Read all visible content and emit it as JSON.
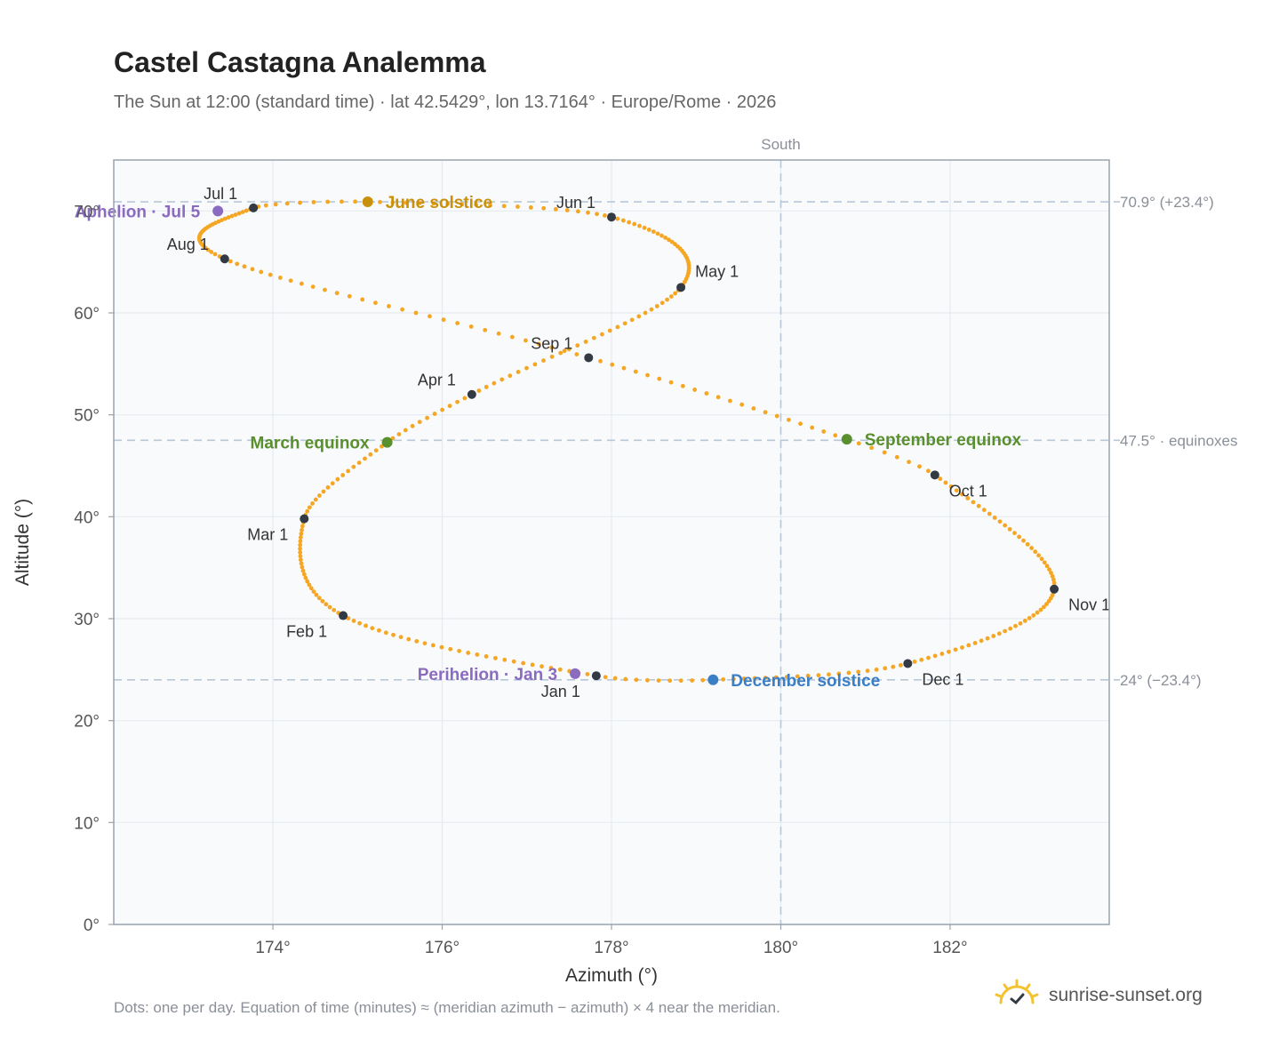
{
  "title": "Castel Castagna Analemma",
  "subtitle": "The Sun at 12:00 (standard time) · lat 42.5429°, lon 13.7164° · Europe/Rome · 2026",
  "footnote": "Dots: one per day. Equation of time (minutes) ≈ (meridian azimuth − azimuth) × 4 near the meridian.",
  "brand": {
    "text": "sunrise-sunset.org",
    "icon": "sun-logo-icon"
  },
  "colors": {
    "curve": "#f5a623",
    "month_marker": "#333a44",
    "june_solstice": "#c9900c",
    "december_solstice": "#3a7ec6",
    "equinox": "#5a8f2e",
    "apsis": "#8b6bbf",
    "reference_line": "#b8c8d6",
    "plot_bg": "#f8fafc",
    "grid": "#e6ebf0",
    "frame": "#9aa3ae"
  },
  "chart_data": {
    "type": "scatter",
    "xlabel": "Azimuth (°)",
    "ylabel": "Altitude (°)",
    "xlim": [
      172.12,
      183.88
    ],
    "ylim": [
      0,
      75
    ],
    "xticks": [
      174,
      176,
      178,
      180,
      182
    ],
    "xtick_labels": [
      "174°",
      "176°",
      "178°",
      "180°",
      "182°"
    ],
    "yticks": [
      0,
      10,
      20,
      30,
      40,
      50,
      60,
      70
    ],
    "ytick_labels": [
      "0°",
      "10°",
      "20°",
      "30°",
      "40°",
      "50°",
      "60°",
      "70°"
    ],
    "grid": true,
    "series_points_per_day": true,
    "anchors": [
      {
        "doy": 1,
        "az": 177.82,
        "alt": 24.4
      },
      {
        "doy": 32,
        "az": 174.83,
        "alt": 30.3
      },
      {
        "doy": 60,
        "az": 174.37,
        "alt": 39.8
      },
      {
        "doy": 79,
        "az": 175.35,
        "alt": 47.3
      },
      {
        "doy": 91,
        "az": 176.35,
        "alt": 52.0
      },
      {
        "doy": 121,
        "az": 178.82,
        "alt": 62.5
      },
      {
        "doy": 152,
        "az": 178.0,
        "alt": 69.4
      },
      {
        "doy": 172,
        "az": 175.12,
        "alt": 70.9
      },
      {
        "doy": 182,
        "az": 173.77,
        "alt": 70.3
      },
      {
        "doy": 213,
        "az": 173.43,
        "alt": 65.3
      },
      {
        "doy": 244,
        "az": 177.73,
        "alt": 55.6
      },
      {
        "doy": 266,
        "az": 180.78,
        "alt": 47.6
      },
      {
        "doy": 274,
        "az": 181.82,
        "alt": 44.1
      },
      {
        "doy": 305,
        "az": 183.23,
        "alt": 32.9
      },
      {
        "doy": 335,
        "az": 181.5,
        "alt": 25.6
      },
      {
        "doy": 355,
        "az": 179.2,
        "alt": 24.0
      },
      {
        "doy": 366,
        "az": 177.82,
        "alt": 24.4
      }
    ],
    "month_markers": [
      {
        "label": "Jan 1",
        "az": 177.82,
        "alt": 24.4,
        "pos": "below-left"
      },
      {
        "label": "Feb 1",
        "az": 174.83,
        "alt": 30.3,
        "pos": "below-left"
      },
      {
        "label": "Mar 1",
        "az": 174.37,
        "alt": 39.8,
        "pos": "below-left"
      },
      {
        "label": "Apr 1",
        "az": 176.35,
        "alt": 52.0,
        "pos": "above-left"
      },
      {
        "label": "May 1",
        "az": 178.82,
        "alt": 62.5,
        "pos": "above-right"
      },
      {
        "label": "Jun 1",
        "az": 178.0,
        "alt": 69.4,
        "pos": "above-left"
      },
      {
        "label": "Jul 1",
        "az": 173.77,
        "alt": 70.3,
        "pos": "above-left"
      },
      {
        "label": "Aug 1",
        "az": 173.43,
        "alt": 65.3,
        "pos": "above-left"
      },
      {
        "label": "Sep 1",
        "az": 177.73,
        "alt": 55.6,
        "pos": "above-left"
      },
      {
        "label": "Oct 1",
        "az": 181.82,
        "alt": 44.1,
        "pos": "below-right"
      },
      {
        "label": "Nov 1",
        "az": 183.23,
        "alt": 32.9,
        "pos": "below-right"
      },
      {
        "label": "Dec 1",
        "az": 181.5,
        "alt": 25.6,
        "pos": "below-right"
      }
    ],
    "events": [
      {
        "label": "June solstice",
        "az": 175.12,
        "alt": 70.9,
        "color": "#c9900c",
        "side": "right"
      },
      {
        "label": "December solstice",
        "az": 179.2,
        "alt": 24.0,
        "color": "#3a7ec6",
        "side": "right"
      },
      {
        "label": "March equinox",
        "az": 175.35,
        "alt": 47.3,
        "color": "#5a8f2e",
        "side": "left"
      },
      {
        "label": "September equinox",
        "az": 180.78,
        "alt": 47.6,
        "color": "#5a8f2e",
        "side": "right"
      },
      {
        "label": "Aphelion · Jul 5",
        "az": 173.35,
        "alt": 70.0,
        "color": "#8b6bbf",
        "side": "left"
      },
      {
        "label": "Perihelion · Jan 3",
        "az": 177.57,
        "alt": 24.6,
        "color": "#8b6bbf",
        "side": "left"
      }
    ],
    "reference_lines": [
      {
        "alt": 70.9,
        "label": "70.9° (+23.4°)"
      },
      {
        "alt": 47.5,
        "label": "47.5° · equinoxes"
      },
      {
        "alt": 24.0,
        "label": "24° (−23.4°)"
      }
    ],
    "meridian": {
      "az": 180,
      "label": "South"
    }
  }
}
